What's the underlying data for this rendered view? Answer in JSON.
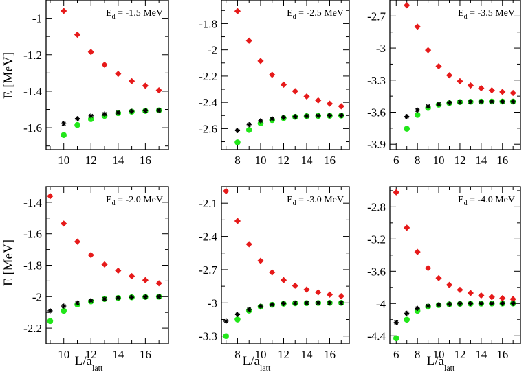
{
  "figure": {
    "ylabel": "E [MeV]",
    "xlabel": "L/a",
    "xlabel_sub": "latt",
    "anno_prefix": "E",
    "anno_sub": "d"
  },
  "chart_data": [
    {
      "type": "scatter",
      "annotation": "= -1.5 MeV",
      "xlim": [
        8.7,
        17.7
      ],
      "ylim": [
        -1.72,
        -0.9
      ],
      "xticks": [
        10,
        12,
        14,
        16
      ],
      "xminor": [
        9,
        11,
        13,
        15,
        17
      ],
      "yticks": [
        -1.6,
        -1.4,
        -1.2,
        -1
      ],
      "yminor": [
        -1.7,
        -1.5,
        -1.3,
        -1.1,
        -0.9
      ],
      "series": [
        {
          "color": "#e61a1a",
          "marker": "diamond",
          "points": [
            [
              10,
              -0.96
            ],
            [
              11,
              -1.09
            ],
            [
              12,
              -1.185
            ],
            [
              13,
              -1.255
            ],
            [
              14,
              -1.305
            ],
            [
              15,
              -1.345
            ],
            [
              16,
              -1.37
            ],
            [
              17,
              -1.395
            ]
          ]
        },
        {
          "color": "#22e61a",
          "marker": "circle",
          "points": [
            [
              10,
              -1.64
            ],
            [
              11,
              -1.585
            ],
            [
              12,
              -1.553
            ],
            [
              13,
              -1.535
            ],
            [
              14,
              -1.52
            ],
            [
              15,
              -1.512
            ],
            [
              16,
              -1.508
            ],
            [
              17,
              -1.505
            ]
          ]
        },
        {
          "color": "#000000",
          "marker": "star",
          "points": [
            [
              10,
              -1.578
            ],
            [
              11,
              -1.55
            ],
            [
              12,
              -1.535
            ],
            [
              13,
              -1.525
            ],
            [
              14,
              -1.517
            ],
            [
              15,
              -1.51
            ],
            [
              16,
              -1.507
            ],
            [
              17,
              -1.505
            ]
          ]
        }
      ]
    },
    {
      "type": "scatter",
      "annotation": "= -2.5 MeV",
      "xlim": [
        6.6,
        17.7
      ],
      "ylim": [
        -2.76,
        -1.62
      ],
      "xticks": [
        8,
        10,
        12,
        14,
        16
      ],
      "xminor": [
        7,
        9,
        11,
        13,
        15,
        17
      ],
      "yticks": [
        -2.6,
        -2.4,
        -2.2,
        -2,
        -1.8
      ],
      "yminor": [
        -2.7,
        -2.5,
        -2.3,
        -2.1,
        -1.9,
        -1.7
      ],
      "series": [
        {
          "color": "#e61a1a",
          "marker": "diamond",
          "points": [
            [
              8,
              -1.705
            ],
            [
              9,
              -1.93
            ],
            [
              10,
              -2.085
            ],
            [
              11,
              -2.19
            ],
            [
              12,
              -2.265
            ],
            [
              13,
              -2.315
            ],
            [
              14,
              -2.355
            ],
            [
              15,
              -2.385
            ],
            [
              16,
              -2.41
            ],
            [
              17,
              -2.43
            ]
          ]
        },
        {
          "color": "#22e61a",
          "marker": "circle",
          "points": [
            [
              8,
              -2.705
            ],
            [
              9,
              -2.61
            ],
            [
              10,
              -2.56
            ],
            [
              11,
              -2.535
            ],
            [
              12,
              -2.52
            ],
            [
              13,
              -2.51
            ],
            [
              14,
              -2.505
            ],
            [
              15,
              -2.503
            ],
            [
              16,
              -2.502
            ],
            [
              17,
              -2.501
            ]
          ]
        },
        {
          "color": "#000000",
          "marker": "star",
          "points": [
            [
              8,
              -2.615
            ],
            [
              9,
              -2.57
            ],
            [
              10,
              -2.54
            ],
            [
              11,
              -2.525
            ],
            [
              12,
              -2.515
            ],
            [
              13,
              -2.508
            ],
            [
              14,
              -2.504
            ],
            [
              15,
              -2.502
            ],
            [
              16,
              -2.501
            ],
            [
              17,
              -2.5
            ]
          ]
        }
      ]
    },
    {
      "type": "scatter",
      "annotation": "= -3.5 MeV",
      "xlim": [
        5.4,
        17.7
      ],
      "ylim": [
        -3.95,
        -2.55
      ],
      "xticks": [
        6,
        8,
        10,
        12,
        14,
        16
      ],
      "xminor": [
        7,
        9,
        11,
        13,
        15,
        17
      ],
      "yticks": [
        -3.9,
        -3.6,
        -3.3,
        -3,
        -2.7
      ],
      "yminor": [
        -3.75,
        -3.45,
        -3.15,
        -2.85,
        -2.55
      ],
      "series": [
        {
          "color": "#e61a1a",
          "marker": "diamond",
          "points": [
            [
              7,
              -2.6
            ],
            [
              8,
              -2.8
            ],
            [
              9,
              -3.02
            ],
            [
              10,
              -3.17
            ],
            [
              11,
              -3.255
            ],
            [
              12,
              -3.31
            ],
            [
              13,
              -3.35
            ],
            [
              14,
              -3.375
            ],
            [
              15,
              -3.395
            ],
            [
              16,
              -3.41
            ],
            [
              17,
              -3.42
            ]
          ]
        },
        {
          "color": "#22e61a",
          "marker": "circle",
          "points": [
            [
              7,
              -3.755
            ],
            [
              8,
              -3.625
            ],
            [
              9,
              -3.56
            ],
            [
              10,
              -3.53
            ],
            [
              11,
              -3.515
            ],
            [
              12,
              -3.505
            ],
            [
              13,
              -3.502
            ],
            [
              14,
              -3.501
            ],
            [
              15,
              -3.5
            ],
            [
              16,
              -3.5
            ],
            [
              17,
              -3.5
            ]
          ]
        },
        {
          "color": "#000000",
          "marker": "star",
          "points": [
            [
              7,
              -3.64
            ],
            [
              8,
              -3.58
            ],
            [
              9,
              -3.545
            ],
            [
              10,
              -3.525
            ],
            [
              11,
              -3.512
            ],
            [
              12,
              -3.505
            ],
            [
              13,
              -3.502
            ],
            [
              14,
              -3.5
            ],
            [
              15,
              -3.5
            ],
            [
              16,
              -3.5
            ],
            [
              17,
              -3.5
            ]
          ]
        }
      ]
    },
    {
      "type": "scatter",
      "annotation": "= -2.0 MeV",
      "xlim": [
        8.7,
        17.7
      ],
      "ylim": [
        -2.3,
        -1.3
      ],
      "xticks": [
        10,
        12,
        14,
        16
      ],
      "xminor": [
        9,
        11,
        13,
        15,
        17
      ],
      "yticks": [
        -2.2,
        -2,
        -1.8,
        -1.6,
        -1.4
      ],
      "yminor": [
        -2.3,
        -2.1,
        -1.9,
        -1.7,
        -1.5,
        -1.3
      ],
      "series": [
        {
          "color": "#e61a1a",
          "marker": "diamond",
          "points": [
            [
              9,
              -1.36
            ],
            [
              10,
              -1.535
            ],
            [
              11,
              -1.65
            ],
            [
              12,
              -1.735
            ],
            [
              13,
              -1.795
            ],
            [
              14,
              -1.835
            ],
            [
              15,
              -1.87
            ],
            [
              16,
              -1.895
            ],
            [
              17,
              -1.915
            ]
          ]
        },
        {
          "color": "#22e61a",
          "marker": "circle",
          "points": [
            [
              9,
              -2.155
            ],
            [
              10,
              -2.09
            ],
            [
              11,
              -2.05
            ],
            [
              12,
              -2.03
            ],
            [
              13,
              -2.015
            ],
            [
              14,
              -2.008
            ],
            [
              15,
              -2.004
            ],
            [
              16,
              -2.002
            ],
            [
              17,
              -2.0
            ]
          ]
        },
        {
          "color": "#000000",
          "marker": "star",
          "points": [
            [
              9,
              -2.09
            ],
            [
              10,
              -2.06
            ],
            [
              11,
              -2.04
            ],
            [
              12,
              -2.025
            ],
            [
              13,
              -2.015
            ],
            [
              14,
              -2.008
            ],
            [
              15,
              -2.004
            ],
            [
              16,
              -2.002
            ],
            [
              17,
              -2.0
            ]
          ]
        }
      ]
    },
    {
      "type": "scatter",
      "annotation": "= -3.0 MeV",
      "xlim": [
        6.6,
        17.7
      ],
      "ylim": [
        -3.37,
        -1.95
      ],
      "xticks": [
        8,
        10,
        12,
        14,
        16
      ],
      "xminor": [
        7,
        9,
        11,
        13,
        15,
        17
      ],
      "yticks": [
        -3.3,
        -3,
        -2.7,
        -2.4,
        -2.1
      ],
      "yminor": [
        -3.15,
        -2.85,
        -2.55,
        -2.25,
        -1.95
      ],
      "series": [
        {
          "color": "#e61a1a",
          "marker": "diamond",
          "points": [
            [
              7,
              -1.99
            ],
            [
              8,
              -2.26
            ],
            [
              9,
              -2.47
            ],
            [
              10,
              -2.62
            ],
            [
              11,
              -2.725
            ],
            [
              12,
              -2.795
            ],
            [
              13,
              -2.845
            ],
            [
              14,
              -2.88
            ],
            [
              15,
              -2.905
            ],
            [
              16,
              -2.925
            ],
            [
              17,
              -2.94
            ]
          ]
        },
        {
          "color": "#22e61a",
          "marker": "circle",
          "points": [
            [
              7,
              -3.3
            ],
            [
              8,
              -3.15
            ],
            [
              9,
              -3.07
            ],
            [
              10,
              -3.035
            ],
            [
              11,
              -3.017
            ],
            [
              12,
              -3.008
            ],
            [
              13,
              -3.004
            ],
            [
              14,
              -3.002
            ],
            [
              15,
              -3.001
            ],
            [
              16,
              -3.0
            ],
            [
              17,
              -3.0
            ]
          ]
        },
        {
          "color": "#000000",
          "marker": "star",
          "points": [
            [
              7,
              -3.165
            ],
            [
              8,
              -3.105
            ],
            [
              9,
              -3.06
            ],
            [
              10,
              -3.03
            ],
            [
              11,
              -3.015
            ],
            [
              12,
              -3.007
            ],
            [
              13,
              -3.003
            ],
            [
              14,
              -3.001
            ],
            [
              15,
              -3.0
            ],
            [
              16,
              -3.0
            ],
            [
              17,
              -3.0
            ]
          ]
        }
      ]
    },
    {
      "type": "scatter",
      "annotation": "= -4.0 MeV",
      "xlim": [
        5.4,
        17.7
      ],
      "ylim": [
        -4.5,
        -2.55
      ],
      "xticks": [
        6,
        8,
        10,
        12,
        14,
        16
      ],
      "xminor": [
        7,
        9,
        11,
        13,
        15,
        17
      ],
      "yticks": [
        -4.4,
        -4,
        -3.6,
        -3.2,
        -2.8
      ],
      "yminor": [
        -4.2,
        -3.8,
        -3.4,
        -3.0,
        -2.6
      ],
      "series": [
        {
          "color": "#e61a1a",
          "marker": "diamond",
          "points": [
            [
              6,
              -2.62
            ],
            [
              7,
              -3.06
            ],
            [
              8,
              -3.36
            ],
            [
              9,
              -3.56
            ],
            [
              10,
              -3.685
            ],
            [
              11,
              -3.77
            ],
            [
              12,
              -3.83
            ],
            [
              13,
              -3.87
            ],
            [
              14,
              -3.9
            ],
            [
              15,
              -3.92
            ],
            [
              16,
              -3.935
            ],
            [
              17,
              -3.945
            ]
          ]
        },
        {
          "color": "#22e61a",
          "marker": "circle",
          "points": [
            [
              6,
              -4.43
            ],
            [
              7,
              -4.2
            ],
            [
              8,
              -4.09
            ],
            [
              9,
              -4.04
            ],
            [
              10,
              -4.02
            ],
            [
              11,
              -4.01
            ],
            [
              12,
              -4.005
            ],
            [
              13,
              -4.003
            ],
            [
              14,
              -4.001
            ],
            [
              15,
              -4.0
            ],
            [
              16,
              -4.0
            ],
            [
              17,
              -4.0
            ]
          ]
        },
        {
          "color": "#000000",
          "marker": "star",
          "points": [
            [
              6,
              -4.235
            ],
            [
              7,
              -4.12
            ],
            [
              8,
              -4.06
            ],
            [
              9,
              -4.03
            ],
            [
              10,
              -4.015
            ],
            [
              11,
              -4.007
            ],
            [
              12,
              -4.003
            ],
            [
              13,
              -4.001
            ],
            [
              14,
              -4.0
            ],
            [
              15,
              -4.0
            ],
            [
              16,
              -4.0
            ],
            [
              17,
              -4.0
            ]
          ]
        }
      ]
    }
  ]
}
